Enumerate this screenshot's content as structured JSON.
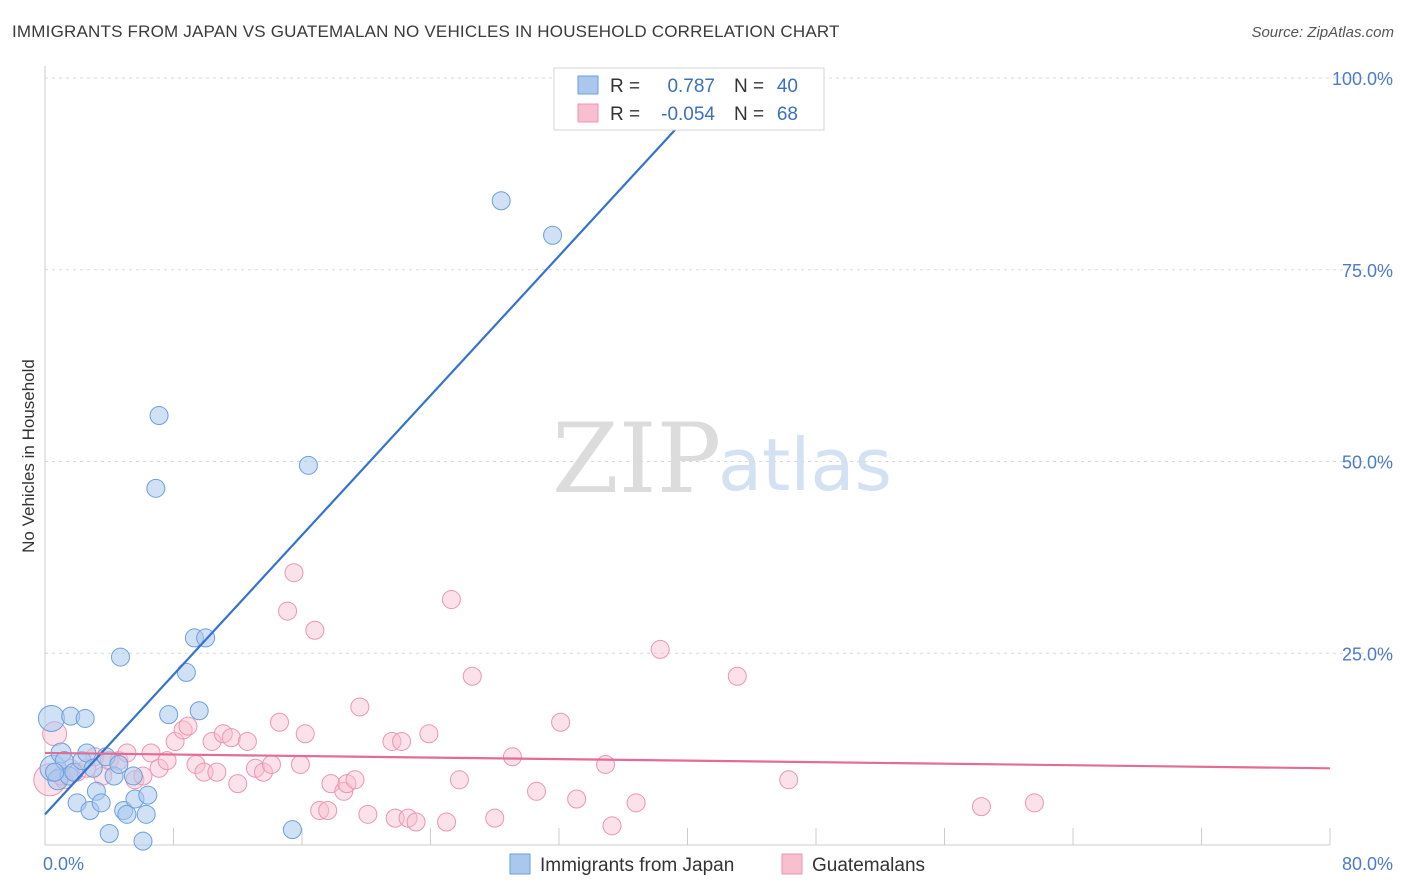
{
  "header": {
    "title": "IMMIGRANTS FROM JAPAN VS GUATEMALAN NO VEHICLES IN HOUSEHOLD CORRELATION CHART",
    "source": "Source: ZipAtlas.com"
  },
  "watermark": {
    "zip": "ZIP",
    "atlas": "atlas"
  },
  "colors": {
    "japan_fill": "#aac8ee",
    "japan_stroke": "#6c9fdc",
    "japan_line": "#3473d0",
    "guat_fill": "#f7bfd0",
    "guat_stroke": "#ec95b1",
    "guat_line": "#e36b95",
    "grid": "#d9d9d9",
    "tick_text": "#4a7cc7"
  },
  "stats": {
    "r_label": "R =",
    "n_label": "N =",
    "japan": {
      "r": "0.787",
      "n": "40"
    },
    "guatemalans": {
      "r": "-0.054",
      "n": "68"
    }
  },
  "chart_data": {
    "type": "scatter",
    "title": "IMMIGRANTS FROM JAPAN VS GUATEMALAN NO VEHICLES IN HOUSEHOLD CORRELATION CHART",
    "xlabel": "",
    "ylabel": "No Vehicles in Household",
    "xlim": [
      0,
      80
    ],
    "ylim": [
      0,
      100
    ],
    "x_tick_labels": [
      "0.0%",
      "80.0%"
    ],
    "y_ticks": [
      25,
      50,
      75,
      100
    ],
    "y_tick_labels": [
      "25.0%",
      "50.0%",
      "75.0%",
      "100.0%"
    ],
    "legend": [
      "Immigrants from Japan",
      "Guatemalans"
    ],
    "series": [
      {
        "name": "Immigrants from Japan",
        "r": 0.787,
        "n": 40,
        "trend": {
          "x": [
            0,
            40
          ],
          "y": [
            4,
            95
          ]
        },
        "points": [
          [
            0.4,
            16.5,
            13
          ],
          [
            0.5,
            10,
            13
          ],
          [
            0.8,
            8.5,
            10
          ],
          [
            1.0,
            12,
            10
          ],
          [
            1.2,
            11,
            9
          ],
          [
            1.5,
            9,
            9
          ],
          [
            1.6,
            16.8,
            9
          ],
          [
            1.8,
            9.5,
            9
          ],
          [
            2.0,
            5.5,
            9
          ],
          [
            2.3,
            11,
            9
          ],
          [
            2.5,
            16.5,
            9
          ],
          [
            2.6,
            12,
            9
          ],
          [
            2.8,
            4.5,
            9
          ],
          [
            3.0,
            10,
            9
          ],
          [
            3.2,
            7,
            9
          ],
          [
            3.5,
            5.5,
            9
          ],
          [
            3.8,
            11.5,
            9
          ],
          [
            4.0,
            1.5,
            9
          ],
          [
            4.3,
            9,
            9
          ],
          [
            4.6,
            10.5,
            9
          ],
          [
            4.7,
            24.5,
            9
          ],
          [
            4.9,
            4.5,
            9
          ],
          [
            5.1,
            4,
            9
          ],
          [
            5.5,
            9,
            9
          ],
          [
            5.6,
            6,
            9
          ],
          [
            6.1,
            0.5,
            9
          ],
          [
            6.3,
            4,
            9
          ],
          [
            6.4,
            6.5,
            9
          ],
          [
            6.9,
            46.5,
            9
          ],
          [
            7.1,
            56,
            9
          ],
          [
            7.7,
            17,
            9
          ],
          [
            8.8,
            22.5,
            9
          ],
          [
            9.3,
            27,
            9
          ],
          [
            9.6,
            17.5,
            9
          ],
          [
            10.0,
            27,
            9
          ],
          [
            15.4,
            2,
            9
          ],
          [
            16.4,
            49.5,
            9
          ],
          [
            28.4,
            84,
            9
          ],
          [
            31.6,
            79.5,
            9
          ],
          [
            0.6,
            9.5,
            9
          ]
        ]
      },
      {
        "name": "Guatemalans",
        "r": -0.054,
        "n": 68,
        "trend": {
          "x": [
            0,
            80
          ],
          "y": [
            12,
            10
          ]
        },
        "points": [
          [
            0.3,
            8.5,
            16
          ],
          [
            0.6,
            14.5,
            12
          ],
          [
            1.2,
            8.5,
            9
          ],
          [
            1.6,
            10,
            9
          ],
          [
            2.0,
            9.5,
            9
          ],
          [
            2.6,
            10,
            9
          ],
          [
            3.1,
            11.5,
            9
          ],
          [
            3.6,
            9,
            9
          ],
          [
            4.0,
            11,
            9
          ],
          [
            4.6,
            11,
            9
          ],
          [
            5.1,
            12,
            9
          ],
          [
            5.6,
            8.5,
            9
          ],
          [
            6.1,
            9,
            9
          ],
          [
            6.6,
            12,
            9
          ],
          [
            7.1,
            10,
            9
          ],
          [
            7.6,
            11,
            9
          ],
          [
            8.1,
            13.5,
            9
          ],
          [
            8.6,
            15,
            9
          ],
          [
            8.9,
            15.5,
            9
          ],
          [
            9.4,
            10.5,
            9
          ],
          [
            9.9,
            9.5,
            9
          ],
          [
            10.4,
            13.5,
            9
          ],
          [
            10.7,
            9.5,
            9
          ],
          [
            11.1,
            14.5,
            9
          ],
          [
            11.6,
            14,
            9
          ],
          [
            12.0,
            8,
            9
          ],
          [
            12.6,
            13.5,
            9
          ],
          [
            13.1,
            10,
            9
          ],
          [
            13.6,
            9.5,
            9
          ],
          [
            14.1,
            10.5,
            9
          ],
          [
            14.6,
            16,
            9
          ],
          [
            15.1,
            30.5,
            9
          ],
          [
            15.5,
            35.5,
            9
          ],
          [
            15.9,
            10.5,
            9
          ],
          [
            16.2,
            14.5,
            9
          ],
          [
            16.8,
            28,
            9
          ],
          [
            17.1,
            4.5,
            9
          ],
          [
            17.6,
            4.5,
            9
          ],
          [
            17.8,
            8,
            9
          ],
          [
            18.6,
            7,
            9
          ],
          [
            18.8,
            8,
            9
          ],
          [
            19.3,
            8.5,
            9
          ],
          [
            19.6,
            18,
            9
          ],
          [
            20.1,
            4,
            9
          ],
          [
            21.6,
            13.5,
            9
          ],
          [
            21.8,
            3.5,
            9
          ],
          [
            22.2,
            13.5,
            9
          ],
          [
            22.6,
            3.5,
            9
          ],
          [
            23.1,
            3,
            9
          ],
          [
            23.9,
            14.5,
            9
          ],
          [
            25.0,
            3,
            9
          ],
          [
            25.3,
            32,
            9
          ],
          [
            25.8,
            8.5,
            9
          ],
          [
            26.6,
            22,
            9
          ],
          [
            28.0,
            3.5,
            9
          ],
          [
            29.1,
            11.5,
            9
          ],
          [
            30.6,
            7,
            9
          ],
          [
            32.1,
            16,
            9
          ],
          [
            33.1,
            6,
            9
          ],
          [
            34.9,
            10.5,
            9
          ],
          [
            35.3,
            2.5,
            9
          ],
          [
            36.8,
            5.5,
            9
          ],
          [
            38.3,
            25.5,
            9
          ],
          [
            43.1,
            22,
            9
          ],
          [
            46.3,
            8.5,
            9
          ],
          [
            58.3,
            5,
            9
          ],
          [
            61.6,
            5.5,
            9
          ],
          [
            1.0,
            9,
            9
          ]
        ]
      }
    ]
  }
}
